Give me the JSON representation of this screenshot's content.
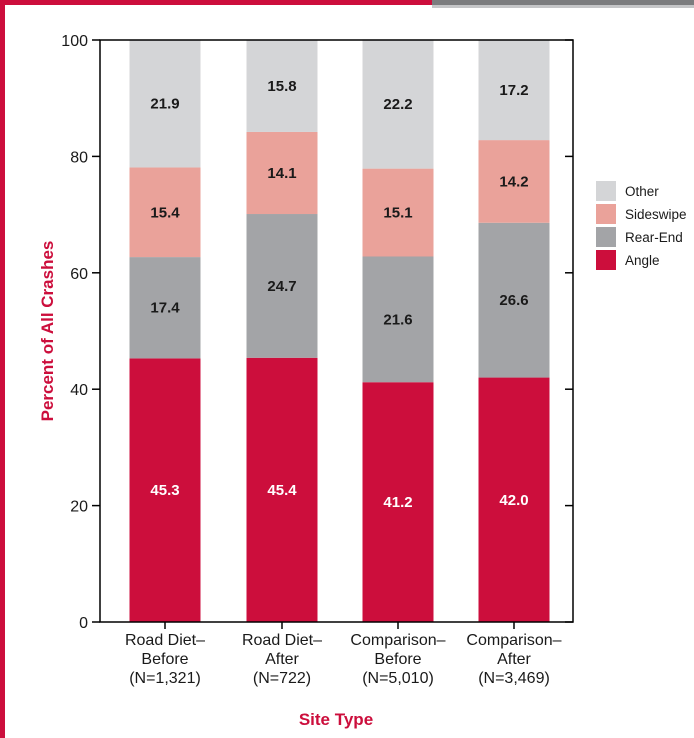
{
  "chart_data": {
    "type": "bar",
    "stacked": true,
    "title": "",
    "xlabel": "Site Type",
    "ylabel": "Percent of All Crashes",
    "ylim": [
      0,
      100
    ],
    "yticks": [
      0,
      20,
      40,
      60,
      80,
      100
    ],
    "categories": [
      [
        "Road Diet–",
        "Before",
        "(N=1,321)"
      ],
      [
        "Road Diet–",
        "After",
        "(N=722)"
      ],
      [
        "Comparison–",
        "Before",
        "(N=5,010)"
      ],
      [
        "Comparison–",
        "After",
        "(N=3,469)"
      ]
    ],
    "series": [
      {
        "name": "Angle",
        "color": "#cc0e3c",
        "label_color": "#ffffff",
        "values": [
          45.3,
          45.4,
          41.2,
          42.0
        ]
      },
      {
        "name": "Rear-End",
        "color": "#a3a4a7",
        "label_color": "#1a1a1a",
        "values": [
          17.4,
          24.7,
          21.6,
          26.6
        ]
      },
      {
        "name": "Sideswipe",
        "color": "#eaa29a",
        "label_color": "#1a1a1a",
        "values": [
          15.4,
          14.1,
          15.1,
          14.2
        ]
      },
      {
        "name": "Other",
        "color": "#d4d5d7",
        "label_color": "#1a1a1a",
        "values": [
          21.9,
          15.8,
          22.2,
          17.2
        ]
      }
    ],
    "legend_placement": "right",
    "legend_order": [
      "Other",
      "Sideswipe",
      "Rear-End",
      "Angle"
    ],
    "grid": false,
    "accent_color": "#cc0e3c"
  }
}
